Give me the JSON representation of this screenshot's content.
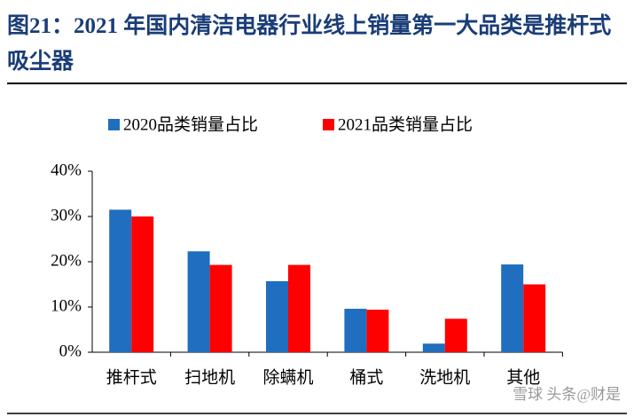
{
  "chart_data": {
    "type": "bar",
    "title": "图21：2021 年国内清洁电器行业线上销量第一大品类是推杆式吸尘器",
    "categories": [
      "推杆式",
      "扫地机",
      "除螨机",
      "桶式",
      "洗地机",
      "其他"
    ],
    "series": [
      {
        "name": "2020品类销量占比",
        "color": "#1f6ebf",
        "values": [
          31.5,
          22.3,
          15.7,
          9.6,
          1.9,
          19.4
        ]
      },
      {
        "name": "2021品类销量占比",
        "color": "#ff0000",
        "values": [
          30.0,
          19.3,
          19.3,
          9.4,
          7.4,
          15.0
        ]
      }
    ],
    "ylim": [
      0,
      40
    ],
    "yticks": [
      {
        "value": 0,
        "label": "0%"
      },
      {
        "value": 10,
        "label": "10%"
      },
      {
        "value": 20,
        "label": "20%"
      },
      {
        "value": 30,
        "label": "30%"
      },
      {
        "value": 40,
        "label": "40%"
      }
    ],
    "grid": false,
    "legend": "top",
    "watermark": "雪球 头条@财是"
  }
}
